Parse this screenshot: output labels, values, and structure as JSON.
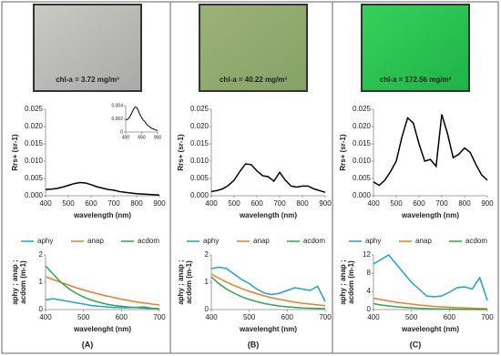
{
  "panels": [
    {
      "photo_label": "chl-a = 3.72 mg/m³",
      "panel_label": "(A)"
    },
    {
      "photo_label": "chl-a = 40.22 mg/m³",
      "panel_label": "(B)"
    },
    {
      "photo_label": "chl-a = 172.56 mg/m³",
      "panel_label": "(C)"
    }
  ],
  "chart_data": [
    {
      "type": "line",
      "xlabel": "wavelength (nm)",
      "ylabel": "Rrs+ (sr-1)",
      "x": [
        400,
        425,
        450,
        475,
        500,
        525,
        550,
        575,
        600,
        625,
        650,
        675,
        700,
        725,
        750,
        775,
        800,
        825,
        850,
        875,
        900
      ],
      "series": [
        {
          "color": "#000000",
          "values": [
            0.0018,
            0.0019,
            0.0021,
            0.0025,
            0.003,
            0.0035,
            0.0038,
            0.0037,
            0.0032,
            0.0026,
            0.0022,
            0.0018,
            0.0016,
            0.0012,
            0.001,
            0.0008,
            0.0006,
            0.0005,
            0.0004,
            0.0003,
            0.0002
          ]
        }
      ],
      "xlim": [
        400,
        900
      ],
      "xticks": [
        400,
        500,
        600,
        700,
        800,
        900
      ],
      "ylim": [
        0,
        0.025
      ],
      "yticks": [
        {
          "value": 0,
          "label": "0.000"
        },
        0.005,
        {
          "value": 0.01,
          "label": "0.010"
        },
        0.015,
        {
          "value": 0.02,
          "label": "0.020"
        },
        0.025
      ],
      "inset": {
        "xlim": [
          400,
          900
        ],
        "xticks": [
          400,
          650,
          900
        ],
        "ylim": [
          0,
          0.004
        ],
        "yticks": [
          0,
          0.002,
          0.004
        ]
      }
    },
    {
      "type": "line",
      "xlabel": "wavelength (nm)",
      "ylabel": "Rrs+ (sr-1)",
      "x": [
        400,
        425,
        450,
        475,
        500,
        525,
        550,
        575,
        600,
        625,
        650,
        675,
        700,
        725,
        750,
        775,
        800,
        825,
        850,
        875,
        900
      ],
      "series": [
        {
          "color": "#000000",
          "values": [
            0.0012,
            0.0015,
            0.002,
            0.003,
            0.0045,
            0.007,
            0.0092,
            0.009,
            0.0072,
            0.0058,
            0.0055,
            0.0042,
            0.0068,
            0.0045,
            0.0028,
            0.0025,
            0.0028,
            0.0028,
            0.002,
            0.0015,
            0.001
          ]
        }
      ],
      "xlim": [
        400,
        900
      ],
      "xticks": [
        400,
        500,
        600,
        700,
        800,
        900
      ],
      "ylim": [
        0,
        0.025
      ],
      "yticks": [
        {
          "value": 0,
          "label": "0.000"
        },
        0.005,
        {
          "value": 0.01,
          "label": "0.010"
        },
        0.015,
        {
          "value": 0.02,
          "label": "0.020"
        },
        0.025
      ]
    },
    {
      "type": "line",
      "xlabel": "wavelength (nm)",
      "ylabel": "Rrs+ (sr-1)",
      "x": [
        400,
        425,
        450,
        475,
        500,
        525,
        550,
        575,
        600,
        625,
        650,
        675,
        700,
        725,
        750,
        775,
        800,
        825,
        850,
        875,
        900
      ],
      "series": [
        {
          "color": "#000000",
          "values": [
            0.004,
            0.003,
            0.0045,
            0.007,
            0.01,
            0.017,
            0.0225,
            0.021,
            0.015,
            0.01,
            0.0105,
            0.0085,
            0.0235,
            0.018,
            0.011,
            0.012,
            0.0138,
            0.0125,
            0.009,
            0.006,
            0.0045
          ]
        }
      ],
      "xlim": [
        400,
        900
      ],
      "xticks": [
        400,
        500,
        600,
        700,
        800,
        900
      ],
      "ylim": [
        0,
        0.025
      ],
      "yticks": [
        {
          "value": 0,
          "label": "0.000"
        },
        0.005,
        {
          "value": 0.01,
          "label": "0.010"
        },
        0.015,
        {
          "value": 0.02,
          "label": "0.020"
        },
        0.025
      ]
    },
    {
      "type": "line",
      "xlabel": "wavelenght (nm)",
      "ylabel": [
        "aphy ; anap ;",
        "acdom (m-1)"
      ],
      "x": [
        400,
        420,
        440,
        460,
        480,
        500,
        520,
        540,
        560,
        580,
        600,
        620,
        640,
        660,
        680,
        700
      ],
      "series": [
        {
          "name": "aphy",
          "color": "#1ca3d8",
          "values": [
            0.35,
            0.4,
            0.35,
            0.3,
            0.25,
            0.2,
            0.15,
            0.12,
            0.1,
            0.08,
            0.07,
            0.07,
            0.08,
            0.1,
            0.05,
            0.02
          ]
        },
        {
          "name": "anap",
          "color": "#f07c24",
          "values": [
            1.2,
            1.1,
            1.0,
            0.9,
            0.8,
            0.72,
            0.64,
            0.57,
            0.5,
            0.44,
            0.38,
            0.33,
            0.28,
            0.24,
            0.2,
            0.17
          ]
        },
        {
          "name": "acdom",
          "color": "#2aa84a",
          "values": [
            1.6,
            1.3,
            1.0,
            0.78,
            0.6,
            0.46,
            0.35,
            0.27,
            0.2,
            0.15,
            0.12,
            0.09,
            0.07,
            0.05,
            0.04,
            0.03
          ]
        }
      ],
      "xlim": [
        400,
        700
      ],
      "xticks": [
        400,
        500,
        600,
        700
      ],
      "ylim": [
        0,
        2
      ],
      "yticks": [
        0,
        1,
        2
      ]
    },
    {
      "type": "line",
      "xlabel": "wavelenght (nm)",
      "ylabel": [
        "aphy ; anap ;",
        "acdom (m-1)"
      ],
      "x": [
        400,
        420,
        440,
        460,
        480,
        500,
        520,
        540,
        560,
        580,
        600,
        620,
        640,
        660,
        680,
        700
      ],
      "series": [
        {
          "name": "aphy",
          "color": "#1ca3d8",
          "values": [
            1.5,
            1.55,
            1.5,
            1.3,
            1.1,
            0.95,
            0.75,
            0.6,
            0.55,
            0.6,
            0.7,
            0.8,
            0.75,
            0.7,
            0.85,
            0.3
          ]
        },
        {
          "name": "anap",
          "color": "#f07c24",
          "values": [
            1.3,
            1.15,
            1.0,
            0.88,
            0.77,
            0.67,
            0.58,
            0.5,
            0.43,
            0.37,
            0.32,
            0.27,
            0.23,
            0.2,
            0.17,
            0.14
          ]
        },
        {
          "name": "acdom",
          "color": "#2aa84a",
          "values": [
            1.2,
            0.95,
            0.75,
            0.6,
            0.47,
            0.37,
            0.29,
            0.22,
            0.17,
            0.13,
            0.1,
            0.08,
            0.06,
            0.05,
            0.04,
            0.03
          ]
        }
      ],
      "xlim": [
        400,
        700
      ],
      "xticks": [
        400,
        500,
        600,
        700
      ],
      "ylim": [
        0,
        2
      ],
      "yticks": [
        0,
        1,
        2
      ]
    },
    {
      "type": "line",
      "xlabel": "wavelenght (nm)",
      "ylabel": [
        "aphy ; anap ;",
        "acdom (m-1)"
      ],
      "x": [
        400,
        420,
        440,
        460,
        480,
        500,
        520,
        540,
        560,
        580,
        600,
        620,
        640,
        660,
        680,
        700
      ],
      "series": [
        {
          "name": "aphy",
          "color": "#1ca3d8",
          "values": [
            10,
            11,
            12,
            10,
            8,
            6,
            4.5,
            3,
            2.8,
            3,
            3.8,
            4.8,
            5,
            4.5,
            7,
            2
          ]
        },
        {
          "name": "anap",
          "color": "#f07c24",
          "values": [
            2.5,
            2.2,
            1.9,
            1.6,
            1.4,
            1.2,
            1,
            0.85,
            0.7,
            0.6,
            0.5,
            0.42,
            0.35,
            0.3,
            0.25,
            0.2
          ]
        },
        {
          "name": "acdom",
          "color": "#2aa84a",
          "values": [
            1.3,
            1.0,
            0.8,
            0.62,
            0.48,
            0.37,
            0.28,
            0.21,
            0.16,
            0.12,
            0.09,
            0.07,
            0.05,
            0.04,
            0.03,
            0.02
          ]
        }
      ],
      "xlim": [
        400,
        700
      ],
      "xticks": [
        400,
        500,
        600,
        700
      ],
      "ylim": [
        0,
        12
      ],
      "yticks": [
        0,
        4,
        8,
        12
      ]
    }
  ]
}
